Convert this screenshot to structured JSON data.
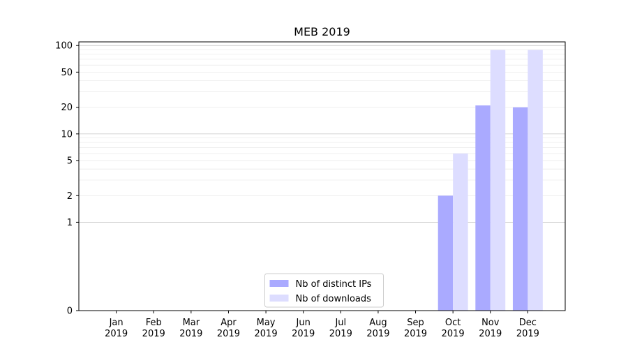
{
  "chart_data": {
    "type": "bar",
    "title": "MEB 2019",
    "yscale": "symlog",
    "ylim": [
      0,
      110
    ],
    "yticks": [
      0,
      1,
      2,
      5,
      10,
      20,
      50,
      100
    ],
    "categories": [
      [
        "Jan",
        "2019"
      ],
      [
        "Feb",
        "2019"
      ],
      [
        "Mar",
        "2019"
      ],
      [
        "Apr",
        "2019"
      ],
      [
        "May",
        "2019"
      ],
      [
        "Jun",
        "2019"
      ],
      [
        "Jul",
        "2019"
      ],
      [
        "Aug",
        "2019"
      ],
      [
        "Sep",
        "2019"
      ],
      [
        "Oct",
        "2019"
      ],
      [
        "Nov",
        "2019"
      ],
      [
        "Dec",
        "2019"
      ]
    ],
    "series": [
      {
        "name": "Nb of distinct IPs",
        "color": "#aaaaff",
        "values": [
          0,
          0,
          0,
          0,
          0,
          0,
          0,
          0,
          0,
          2,
          21,
          20
        ]
      },
      {
        "name": "Nb of downloads",
        "color": "#ddddff",
        "values": [
          0,
          0,
          0,
          0,
          0,
          0,
          0,
          0,
          0,
          6,
          89,
          89
        ]
      }
    ],
    "legend": {
      "position": "lower-center"
    }
  }
}
